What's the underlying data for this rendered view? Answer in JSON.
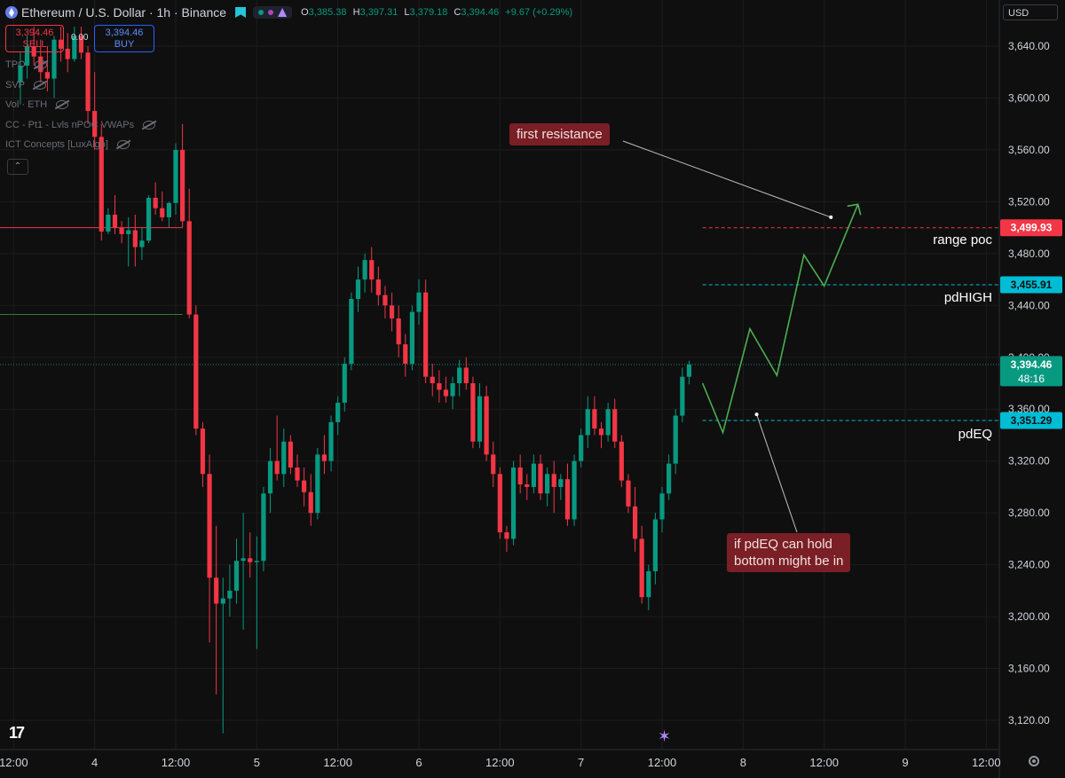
{
  "header": {
    "symbol": "Ethereum / U.S. Dollar · 1h · Binance",
    "open_label": "O",
    "open": "3,385.38",
    "high_label": "H",
    "high": "3,397.31",
    "low_label": "L",
    "low": "3,379.18",
    "close_label": "C",
    "close": "3,394.46",
    "change": "+9.67 (+0.29%)",
    "dot_colors": [
      "#089981",
      "#ab47bc",
      "#b388ff"
    ]
  },
  "trade": {
    "sell_price": "3,394.46",
    "sell_label": "SELL",
    "buy_price": "3,394.46",
    "buy_label": "BUY",
    "spread": "0.00"
  },
  "indicators": [
    "TPO",
    "SVP",
    "Vol · ETH",
    "CC - Pt1 - Lvls nPOC VWAPs",
    "ICT Concepts [LuxAlgo]"
  ],
  "currency": "USD",
  "colors": {
    "background": "#0f0f0f",
    "up": "#089981",
    "down": "#f23645",
    "grid": "#1c1c1c",
    "projection": "#4caf50",
    "range_poc": "#f23645",
    "levels": "#00bcd4"
  },
  "chart_data": {
    "type": "candlestick",
    "title": "Ethereum / U.S. Dollar · 1h · Binance",
    "ylim": [
      3100,
      3655
    ],
    "y_ticks": [
      3120,
      3160,
      3200,
      3240,
      3280,
      3320,
      3360,
      3400,
      3440,
      3480,
      3520,
      3560,
      3600,
      3640
    ],
    "y_tick_labels": [
      "3,120.00",
      "3,160.00",
      "3,200.00",
      "3,240.00",
      "3,280.00",
      "3,320.00",
      "3,360.00",
      "3,400.00",
      "3,440.00",
      "3,480.00",
      "3,520.00",
      "3,560.00",
      "3,600.00",
      "3,640.00"
    ],
    "x_ticks": [
      {
        "bar": -1,
        "label": "12:00"
      },
      {
        "bar": 11,
        "label": "4"
      },
      {
        "bar": 23,
        "label": "12:00"
      },
      {
        "bar": 35,
        "label": "5"
      },
      {
        "bar": 47,
        "label": "12:00"
      },
      {
        "bar": 59,
        "label": "6"
      },
      {
        "bar": 71,
        "label": "12:00"
      },
      {
        "bar": 83,
        "label": "7"
      },
      {
        "bar": 95,
        "label": "12:00"
      },
      {
        "bar": 107,
        "label": "8"
      },
      {
        "bar": 119,
        "label": "12:00"
      },
      {
        "bar": 131,
        "label": "9"
      },
      {
        "bar": 143,
        "label": "12:00"
      }
    ],
    "candles": [
      [
        3612,
        3635,
        3595,
        3625
      ],
      [
        3625,
        3648,
        3615,
        3640
      ],
      [
        3640,
        3655,
        3625,
        3632
      ],
      [
        3632,
        3645,
        3612,
        3620
      ],
      [
        3620,
        3640,
        3605,
        3615
      ],
      [
        3615,
        3648,
        3600,
        3645
      ],
      [
        3645,
        3655,
        3628,
        3638
      ],
      [
        3638,
        3650,
        3620,
        3630
      ],
      [
        3630,
        3655,
        3628,
        3648
      ],
      [
        3648,
        3655,
        3630,
        3635
      ],
      [
        3635,
        3640,
        3580,
        3590
      ],
      [
        3590,
        3620,
        3560,
        3570
      ],
      [
        3570,
        3580,
        3490,
        3497
      ],
      [
        3497,
        3515,
        3495,
        3510
      ],
      [
        3510,
        3525,
        3495,
        3500
      ],
      [
        3500,
        3505,
        3488,
        3495
      ],
      [
        3495,
        3508,
        3470,
        3498
      ],
      [
        3498,
        3510,
        3470,
        3485
      ],
      [
        3485,
        3500,
        3475,
        3490
      ],
      [
        3490,
        3525,
        3488,
        3523
      ],
      [
        3523,
        3535,
        3510,
        3515
      ],
      [
        3515,
        3528,
        3505,
        3508
      ],
      [
        3508,
        3520,
        3500,
        3519
      ],
      [
        3519,
        3565,
        3510,
        3560
      ],
      [
        3560,
        3580,
        3500,
        3505
      ],
      [
        3505,
        3530,
        3430,
        3433
      ],
      [
        3433,
        3440,
        3340,
        3345
      ],
      [
        3345,
        3350,
        3300,
        3310
      ],
      [
        3310,
        3325,
        3180,
        3230
      ],
      [
        3230,
        3270,
        3140,
        3210
      ],
      [
        3210,
        3230,
        3110,
        3214
      ],
      [
        3214,
        3240,
        3200,
        3220
      ],
      [
        3220,
        3260,
        3210,
        3243
      ],
      [
        3243,
        3280,
        3190,
        3245
      ],
      [
        3245,
        3265,
        3230,
        3242
      ],
      [
        3242,
        3262,
        3175,
        3243
      ],
      [
        3243,
        3300,
        3235,
        3295
      ],
      [
        3295,
        3330,
        3280,
        3320
      ],
      [
        3320,
        3355,
        3305,
        3310
      ],
      [
        3310,
        3345,
        3300,
        3335
      ],
      [
        3335,
        3340,
        3310,
        3315
      ],
      [
        3315,
        3325,
        3300,
        3305
      ],
      [
        3305,
        3315,
        3285,
        3296
      ],
      [
        3296,
        3310,
        3270,
        3280
      ],
      [
        3280,
        3330,
        3275,
        3325
      ],
      [
        3325,
        3340,
        3310,
        3320
      ],
      [
        3320,
        3355,
        3312,
        3350
      ],
      [
        3350,
        3370,
        3340,
        3365
      ],
      [
        3365,
        3400,
        3358,
        3395
      ],
      [
        3395,
        3450,
        3390,
        3445
      ],
      [
        3445,
        3470,
        3435,
        3460
      ],
      [
        3460,
        3480,
        3450,
        3475
      ],
      [
        3475,
        3485,
        3450,
        3460
      ],
      [
        3460,
        3470,
        3440,
        3448
      ],
      [
        3448,
        3455,
        3430,
        3440
      ],
      [
        3440,
        3450,
        3420,
        3430
      ],
      [
        3430,
        3440,
        3400,
        3410
      ],
      [
        3410,
        3418,
        3385,
        3395
      ],
      [
        3395,
        3440,
        3390,
        3435
      ],
      [
        3435,
        3460,
        3425,
        3450
      ],
      [
        3450,
        3460,
        3380,
        3385
      ],
      [
        3385,
        3395,
        3370,
        3380
      ],
      [
        3380,
        3390,
        3365,
        3375
      ],
      [
        3375,
        3385,
        3365,
        3370
      ],
      [
        3370,
        3385,
        3360,
        3380
      ],
      [
        3380,
        3398,
        3370,
        3392
      ],
      [
        3392,
        3400,
        3375,
        3380
      ],
      [
        3380,
        3385,
        3330,
        3335
      ],
      [
        3335,
        3380,
        3330,
        3370
      ],
      [
        3370,
        3378,
        3320,
        3325
      ],
      [
        3325,
        3335,
        3300,
        3310
      ],
      [
        3310,
        3315,
        3260,
        3265
      ],
      [
        3265,
        3270,
        3250,
        3260
      ],
      [
        3260,
        3320,
        3255,
        3315
      ],
      [
        3315,
        3325,
        3295,
        3302
      ],
      [
        3302,
        3310,
        3290,
        3300
      ],
      [
        3300,
        3325,
        3295,
        3318
      ],
      [
        3318,
        3325,
        3290,
        3295
      ],
      [
        3295,
        3315,
        3285,
        3310
      ],
      [
        3310,
        3320,
        3280,
        3300
      ],
      [
        3300,
        3310,
        3290,
        3306
      ],
      [
        3306,
        3318,
        3270,
        3275
      ],
      [
        3275,
        3325,
        3270,
        3320
      ],
      [
        3320,
        3345,
        3315,
        3340
      ],
      [
        3340,
        3370,
        3330,
        3360
      ],
      [
        3360,
        3370,
        3340,
        3345
      ],
      [
        3345,
        3350,
        3330,
        3340
      ],
      [
        3340,
        3365,
        3335,
        3360
      ],
      [
        3360,
        3368,
        3330,
        3335
      ],
      [
        3335,
        3340,
        3300,
        3305
      ],
      [
        3305,
        3310,
        3280,
        3285
      ],
      [
        3285,
        3300,
        3250,
        3260
      ],
      [
        3260,
        3270,
        3210,
        3215
      ],
      [
        3215,
        3240,
        3205,
        3235
      ],
      [
        3235,
        3280,
        3225,
        3275
      ],
      [
        3275,
        3300,
        3265,
        3295
      ],
      [
        3295,
        3325,
        3290,
        3318
      ],
      [
        3318,
        3360,
        3310,
        3355
      ],
      [
        3355,
        3392,
        3350,
        3385
      ],
      [
        3385,
        3397.31,
        3379.18,
        3394.46
      ]
    ],
    "horizontal_lines": [
      {
        "name": "upper-red",
        "value": 3500,
        "color": "#f23645",
        "end_bar": 24
      },
      {
        "name": "green",
        "value": 3433,
        "color": "#2e7d32",
        "end_bar": 24
      },
      {
        "name": "range-poc",
        "value": 3499.93,
        "color": "#f23645",
        "start_bar": 101,
        "dashed": true
      },
      {
        "name": "pdhigh",
        "value": 3455.91,
        "color": "#00bcd4",
        "start_bar": 101,
        "dashed": true
      },
      {
        "name": "pdeq",
        "value": 3351.29,
        "color": "#00bcd4",
        "start_bar": 101,
        "dashed": true
      }
    ],
    "projection": [
      [
        101,
        3380
      ],
      [
        104,
        3342
      ],
      [
        108,
        3422
      ],
      [
        112,
        3386
      ],
      [
        116,
        3479
      ],
      [
        119,
        3455
      ],
      [
        124,
        3518
      ]
    ],
    "annotations": [
      {
        "text": "first resistance",
        "box": "top",
        "arrow_to": [
          120,
          3508
        ]
      },
      {
        "text": "if pdEQ can hold\nbottom might be in",
        "box": "bottom",
        "arrow_to": [
          109,
          3356
        ]
      }
    ],
    "price_labels": [
      {
        "value": "3,499.93",
        "y": 3499.93,
        "bg": "#f23645",
        "fg": "#ffffff"
      },
      {
        "value": "3,455.91",
        "y": 3455.91,
        "bg": "#00bcd4",
        "fg": "#0f0f0f"
      },
      {
        "value": "3,394.46",
        "y": 3394.46,
        "bg": "#089981",
        "fg": "#ffffff",
        "extra": "48:16"
      },
      {
        "value": "3,351.29",
        "y": 3351.29,
        "bg": "#00bcd4",
        "fg": "#0f0f0f"
      }
    ],
    "level_labels": [
      {
        "text": "range poc",
        "y": 3499.93
      },
      {
        "text": "pdHIGH",
        "y": 3455.91
      },
      {
        "text": "pdEQ",
        "y": 3351.29
      }
    ]
  }
}
